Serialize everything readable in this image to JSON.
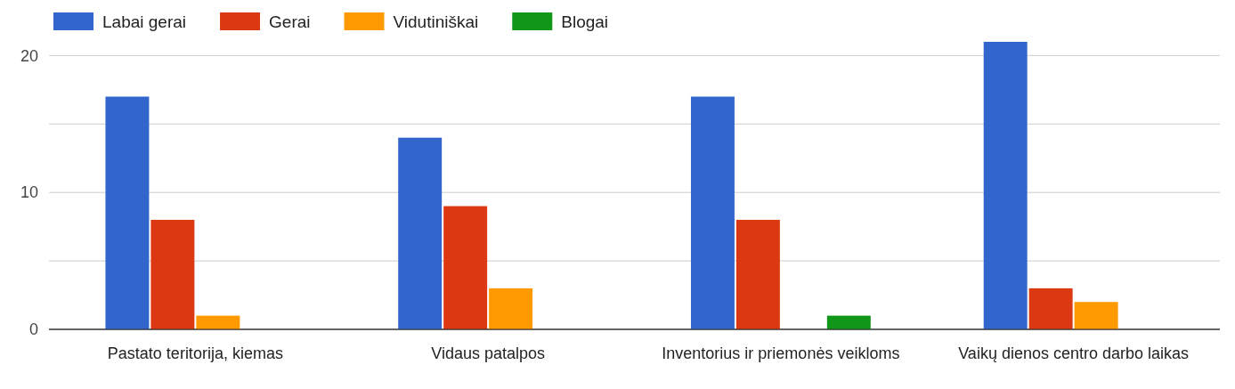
{
  "chart_data": {
    "type": "bar",
    "categories": [
      "Pastato teritorija, kiemas",
      "Vidaus patalpos",
      "Inventorius ir priemonės veikloms",
      "Vaikų dienos centro darbo laikas"
    ],
    "series": [
      {
        "name": "Labai gerai",
        "color": "#3366cc",
        "values": [
          17,
          14,
          17,
          21
        ]
      },
      {
        "name": "Gerai",
        "color": "#dc3912",
        "values": [
          8,
          9,
          8,
          3
        ]
      },
      {
        "name": "Vidutiniškai",
        "color": "#ff9900",
        "values": [
          1,
          3,
          0,
          2
        ]
      },
      {
        "name": "Blogai",
        "color": "#109618",
        "values": [
          0,
          0,
          1,
          0
        ]
      }
    ],
    "ylim": [
      0,
      21
    ],
    "yticks": [
      0,
      {
        "value": 5,
        "label": null
      },
      10,
      {
        "value": 15,
        "label": null
      },
      20
    ],
    "grid": true,
    "legend": "top left"
  }
}
